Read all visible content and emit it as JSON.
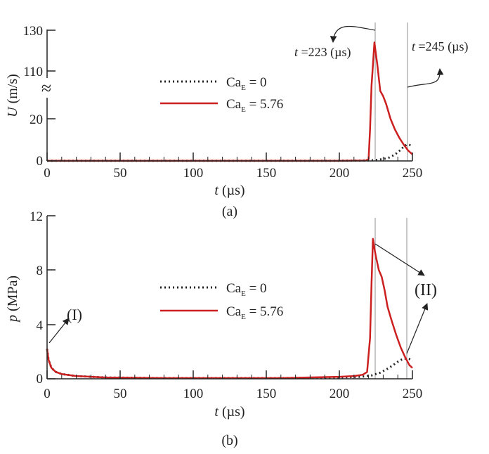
{
  "chart_data": [
    {
      "panel": "(a)",
      "type": "line",
      "ylabel_var": "U",
      "ylabel_unit": " (m/s)",
      "xlabel_var": "t",
      "xlabel_unit": " (µs)",
      "xlim": [
        0,
        250
      ],
      "x_ticks": [
        "0",
        "50",
        "100",
        "150",
        "200",
        "250"
      ],
      "y_ticks": [
        "0",
        "20",
        "110",
        "130"
      ],
      "axis_break": "≈",
      "broken_axis": true,
      "vlines": [
        223,
        245
      ],
      "annotations": [
        {
          "text_var": "t",
          "text": " =223 (µs)"
        },
        {
          "text_var": "t",
          "text": " =245 (µs)"
        }
      ],
      "legend_placement": "center",
      "series": [
        {
          "name_base": "Ca",
          "name_sub": "E",
          "name_rest": " = 0",
          "color": "#222222",
          "style": "dotted",
          "x": [
            0,
            50,
            100,
            150,
            200,
            218,
            222,
            226,
            230,
            234,
            238,
            241,
            244,
            246,
            248,
            250
          ],
          "y": [
            0.1,
            0.1,
            0.1,
            0.1,
            0.1,
            0.2,
            0.3,
            0.5,
            0.9,
            1.6,
            3.0,
            4.7,
            6.7,
            7.7,
            7.6,
            6.9
          ]
        },
        {
          "name_base": "Ca",
          "name_sub": "E",
          "name_rest": " = 5.76",
          "color": "#cc2020",
          "style": "solid",
          "x": [
            0,
            50,
            100,
            150,
            200,
            218,
            220,
            221,
            222,
            223,
            224,
            226,
            228,
            230,
            232,
            235,
            238,
            241,
            244,
            247,
            250
          ],
          "y": [
            0.1,
            0.1,
            0.1,
            0.1,
            0.1,
            0.2,
            0.8,
            15,
            55,
            98,
            124,
            98,
            44,
            33,
            27,
            20,
            15,
            11,
            7.8,
            5.0,
            3.1
          ]
        }
      ]
    },
    {
      "panel": "(b)",
      "type": "line",
      "ylabel_var": "p",
      "ylabel_unit": " (MPa)",
      "xlabel_var": "t",
      "xlabel_unit": " (µs)",
      "xlim": [
        0,
        250
      ],
      "ylim": [
        0,
        12
      ],
      "x_ticks": [
        "0",
        "50",
        "100",
        "150",
        "200",
        "250"
      ],
      "y_ticks": [
        "0",
        "4",
        "8",
        "12"
      ],
      "vlines": [
        223,
        245
      ],
      "annotations": [
        {
          "text": "(I)"
        },
        {
          "text": "(II)"
        }
      ],
      "legend_placement": "center",
      "series": [
        {
          "name_base": "Ca",
          "name_sub": "E",
          "name_rest": " = 0",
          "color": "#222222",
          "style": "dotted",
          "x": [
            0,
            1,
            3,
            6,
            10,
            20,
            40,
            80,
            120,
            160,
            200,
            215,
            222,
            228,
            234,
            240,
            244,
            248,
            250
          ],
          "y": [
            2.2,
            1.4,
            0.8,
            0.5,
            0.35,
            0.2,
            0.1,
            0.05,
            0.05,
            0.05,
            0.1,
            0.15,
            0.25,
            0.45,
            0.8,
            1.25,
            1.5,
            1.45,
            1.3
          ]
        },
        {
          "name_base": "Ca",
          "name_sub": "E",
          "name_rest": " = 5.76",
          "color": "#cc2020",
          "style": "solid",
          "x": [
            0,
            1,
            3,
            6,
            10,
            20,
            40,
            80,
            120,
            160,
            200,
            210,
            216,
            219,
            221,
            222,
            223,
            224,
            225,
            227,
            229,
            231,
            233,
            236,
            239,
            242,
            245,
            248,
            250
          ],
          "y": [
            2.2,
            1.4,
            0.8,
            0.5,
            0.35,
            0.2,
            0.1,
            0.05,
            0.05,
            0.05,
            0.15,
            0.2,
            0.3,
            0.5,
            3.0,
            7.0,
            10.3,
            9.6,
            9.0,
            8.0,
            7.5,
            6.5,
            5.3,
            4.2,
            3.2,
            2.3,
            1.6,
            1.0,
            0.8
          ]
        }
      ]
    }
  ]
}
